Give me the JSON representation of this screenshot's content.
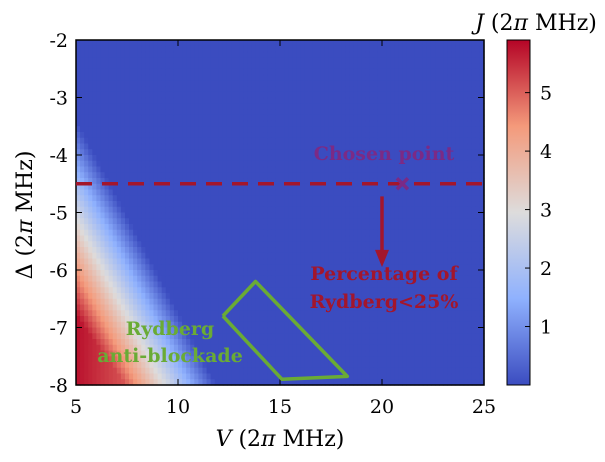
{
  "chart_data": {
    "type": "heatmap",
    "x": {
      "label": "V  (2π MHz)",
      "range": [
        5,
        25
      ],
      "ticks": [
        5,
        10,
        15,
        20,
        25
      ]
    },
    "y": {
      "label": "Δ  (2π MHz)",
      "range": [
        -8,
        -2
      ],
      "ticks": [
        -2,
        -3,
        -4,
        -5,
        -6,
        -7,
        -8
      ]
    },
    "colorbar": {
      "label": "J  (2π MHz)",
      "range": [
        0,
        5.9
      ],
      "ticks": [
        1,
        2,
        3,
        4,
        5
      ],
      "colormap": [
        "#3b4cc0",
        "#8fb1fe",
        "#dddcdc",
        "#f49a7b",
        "#b40426"
      ]
    },
    "series": [
      {
        "name": "",
        "description": "",
        "x": [
          5,
          25
        ],
        "y": [
          -4.5,
          -4.5
        ],
        "color": "#a3162c"
      },
      {
        "name": "",
        "x": [
          21
        ],
        "y": [
          -4.5
        ],
        "color": "#7b2a86"
      },
      {
        "name": "",
        "x": [
          12.2,
          13.8,
          18.3,
          15.1,
          12.2
        ],
        "y": [
          -6.8,
          -6.2,
          -7.85,
          -7.9,
          -6.8
        ],
        "color": "#6aab35"
      }
    ],
    "annotations": {
      "chosen_point": "Chosen point",
      "percentage_line1": "Percentage of",
      "percentage_line2": "Rydberg<25%",
      "antiblockade_line1": "Rydberg",
      "antiblockade_line2": "anti-blockade"
    },
    "colors": {
      "threshold_line": "#a3162c",
      "chosen_point": "#7b2a86",
      "antiblockade": "#6aab35"
    }
  }
}
